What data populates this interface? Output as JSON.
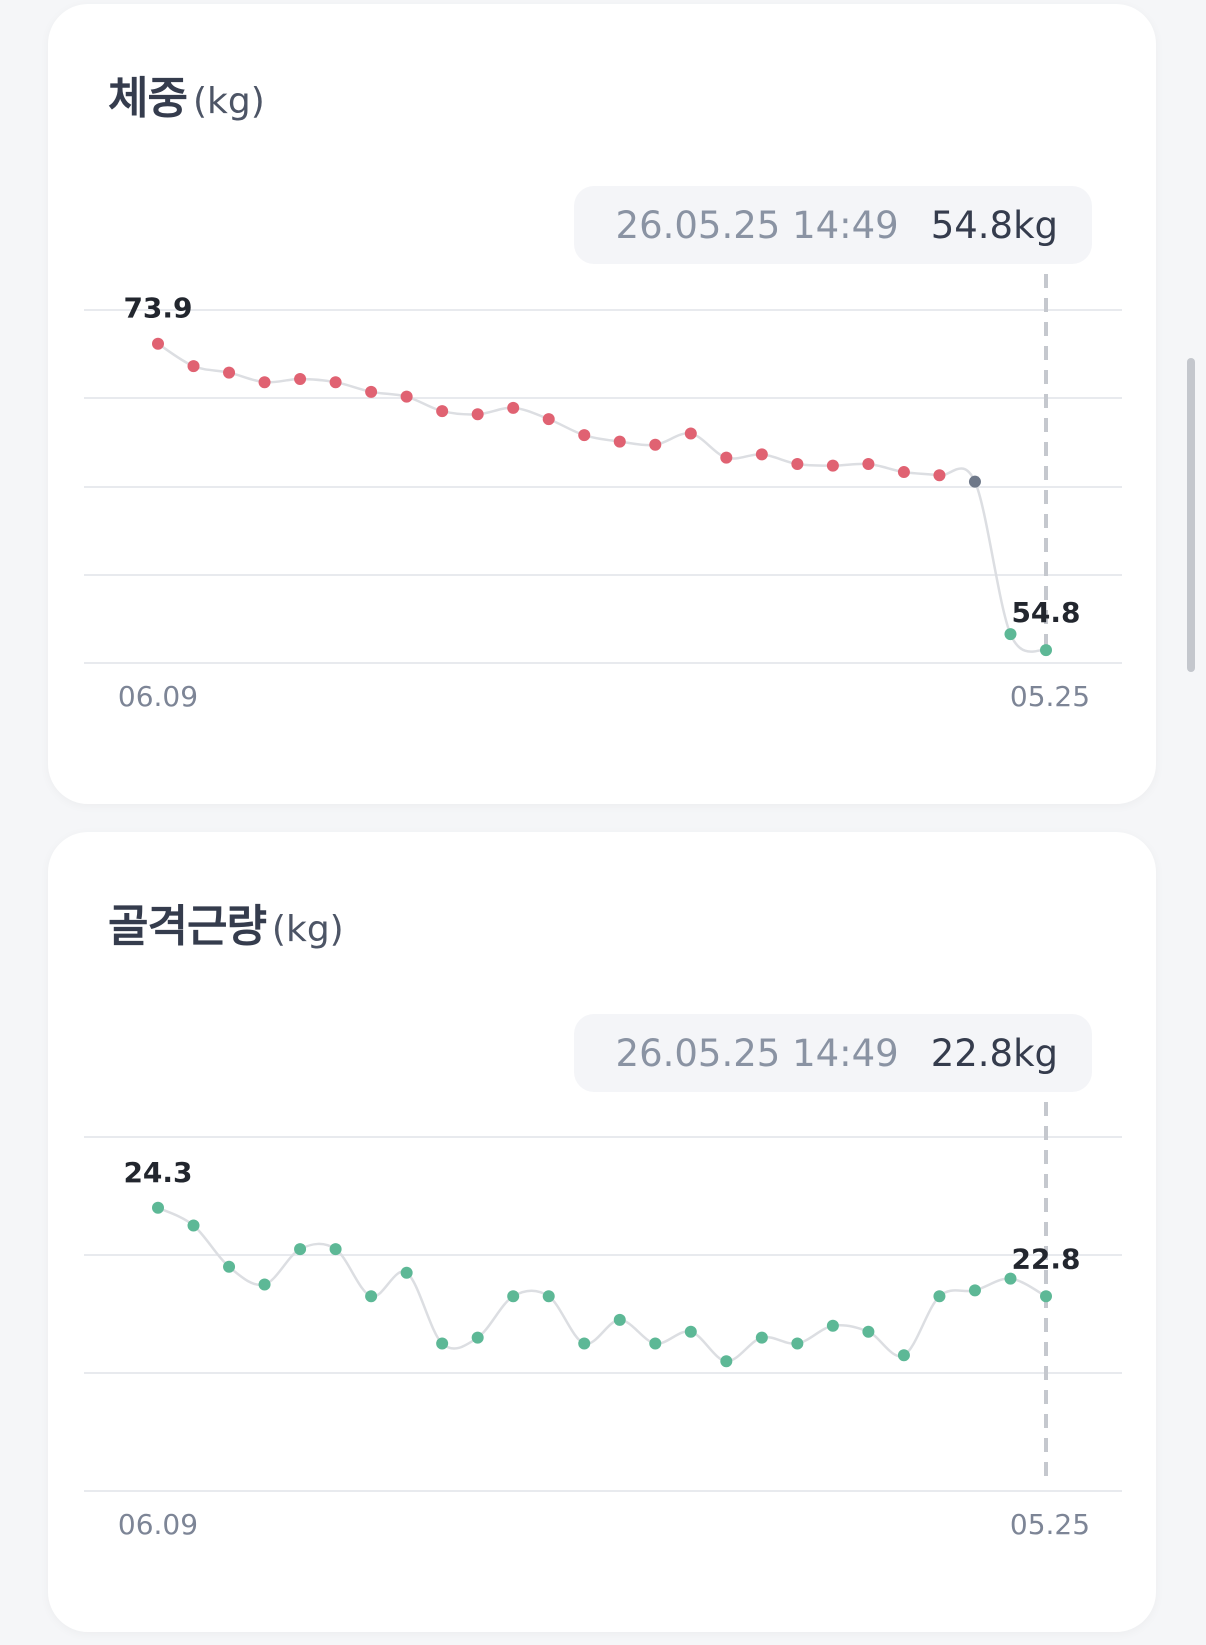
{
  "cards": [
    {
      "title": "체중",
      "unit": "(kg)",
      "tooltip": {
        "date": "26.05.25 14:49",
        "value": "54.8kg"
      },
      "colors": {
        "point": "#e06272",
        "highlight": "#6e7889",
        "recent": "#5db896"
      }
    },
    {
      "title": "골격근량",
      "unit": "(kg)",
      "tooltip": {
        "date": "26.05.25 14:49",
        "value": "22.8kg"
      },
      "colors": {
        "point": "#5db896",
        "highlight": "#5db896",
        "recent": "#5db896"
      }
    }
  ],
  "chart_data": [
    {
      "type": "line",
      "xlabel_start": "06.09",
      "xlabel_end": "05.25",
      "first_label": "73.9",
      "last_label": "54.8",
      "ylim": [
        54.0,
        76.0
      ],
      "grid": true,
      "values": [
        73.9,
        72.5,
        72.1,
        71.5,
        71.7,
        71.5,
        70.9,
        70.6,
        69.7,
        69.5,
        69.9,
        69.2,
        68.2,
        67.8,
        67.6,
        68.3,
        66.8,
        67.0,
        66.4,
        66.3,
        66.4,
        65.9,
        65.7,
        65.3,
        55.8,
        54.8
      ]
    },
    {
      "type": "line",
      "xlabel_start": "06.09",
      "xlabel_end": "05.25",
      "first_label": "24.3",
      "last_label": "22.8",
      "ylim": [
        19.5,
        25.5
      ],
      "grid": true,
      "values": [
        24.3,
        24.0,
        23.3,
        23.0,
        23.6,
        23.6,
        22.8,
        23.2,
        22.0,
        22.1,
        22.8,
        22.8,
        22.0,
        22.4,
        22.0,
        22.2,
        21.7,
        22.1,
        22.0,
        22.3,
        22.2,
        21.8,
        22.8,
        22.9,
        23.1,
        22.8
      ]
    }
  ]
}
